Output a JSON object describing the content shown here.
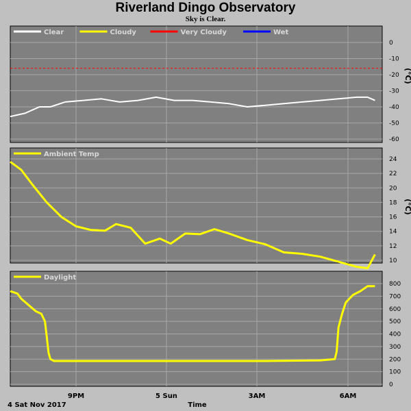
{
  "title": "Riverland Dingo Observatory",
  "subtitle": "Sky is Clear.",
  "colors": {
    "panel": "#808080",
    "grid": "#a8a8a8",
    "clear": "#ffffff",
    "cloudy": "#ffff00",
    "very_cloudy": "#ff0000",
    "wet": "#0000ff"
  },
  "x_axis": {
    "title": "Time",
    "date_label": "4 Sat Nov 2017",
    "ticks": [
      "9PM",
      "5 Sun",
      "3AM",
      "6AM"
    ]
  },
  "chart_data": [
    {
      "type": "line",
      "name": "sky",
      "ylabel": "(°C)",
      "ylim": [
        -60,
        0
      ],
      "yticks": [
        0,
        -10,
        -20,
        -30,
        -40,
        -50,
        -60
      ],
      "threshold": -16,
      "legend": [
        {
          "label": "Clear",
          "color": "#ffffff"
        },
        {
          "label": "Cloudy",
          "color": "#ffff00"
        },
        {
          "label": "Very Cloudy",
          "color": "#ff0000"
        },
        {
          "label": "Wet",
          "color": "#0000ff"
        }
      ],
      "x": [
        0,
        0.4,
        0.8,
        1.1,
        1.5,
        2,
        2.5,
        3,
        3.5,
        4,
        4.5,
        5,
        5.5,
        6,
        6.5,
        7,
        7.5,
        8,
        8.5,
        9,
        9.5,
        9.8,
        10
      ],
      "values": [
        -46,
        -44,
        -40,
        -40,
        -37,
        -36,
        -35,
        -37,
        -36,
        -34,
        -36,
        -36,
        -37,
        -38,
        -40,
        -39,
        -38,
        -37,
        -36,
        -35,
        -34,
        -34,
        -36
      ]
    },
    {
      "type": "line",
      "name": "ambient",
      "ylabel": "(°C)",
      "ylim": [
        8,
        25
      ],
      "yticks": [
        24,
        22,
        20,
        18,
        16,
        14,
        12,
        10
      ],
      "legend": [
        {
          "label": "Ambient Temp",
          "color": "#ffff00"
        }
      ],
      "x": [
        0,
        0.3,
        0.6,
        1,
        1.4,
        1.8,
        2.2,
        2.6,
        2.9,
        3.3,
        3.7,
        4.1,
        4.4,
        4.8,
        5.2,
        5.6,
        6,
        6.5,
        7,
        7.5,
        8,
        8.5,
        9,
        9.5,
        9.8,
        10
      ],
      "values": [
        23.6,
        22.5,
        20.5,
        18,
        16,
        14.7,
        14.2,
        14.1,
        15,
        14.5,
        12.3,
        13,
        12.3,
        13.7,
        13.6,
        14.3,
        13.7,
        12.8,
        12.2,
        11.1,
        10.9,
        10.5,
        9.8,
        9.1,
        8.9,
        10.8
      ]
    },
    {
      "type": "line",
      "name": "daylight",
      "ylim": [
        0,
        800
      ],
      "yticks": [
        800,
        700,
        600,
        500,
        400,
        300,
        200,
        100,
        0
      ],
      "legend": [
        {
          "label": "Daylight",
          "color": "#ffff00"
        }
      ],
      "x": [
        0,
        0.2,
        0.3,
        0.5,
        0.7,
        0.85,
        0.95,
        1,
        1.05,
        1.1,
        1.2,
        1.5,
        3,
        5,
        7,
        8.5,
        8.9,
        8.95,
        9,
        9.1,
        9.2,
        9.4,
        9.6,
        9.8,
        10
      ],
      "values": [
        740,
        720,
        680,
        630,
        580,
        560,
        500,
        380,
        250,
        200,
        185,
        185,
        185,
        185,
        185,
        190,
        200,
        260,
        450,
        560,
        650,
        710,
        740,
        780,
        780
      ]
    }
  ]
}
